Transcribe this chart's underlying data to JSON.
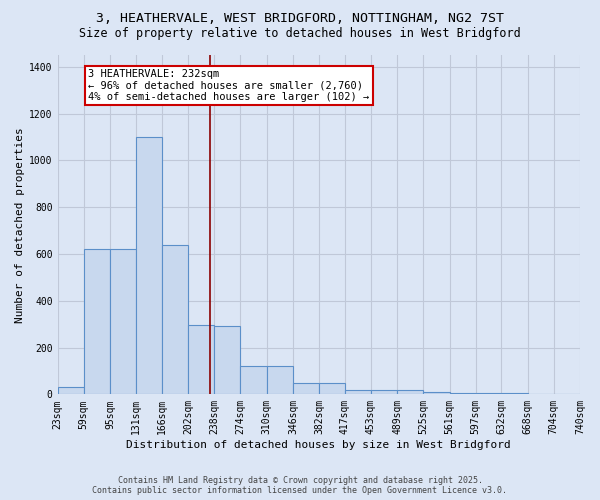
{
  "title1": "3, HEATHERVALE, WEST BRIDGFORD, NOTTINGHAM, NG2 7ST",
  "title2": "Size of property relative to detached houses in West Bridgford",
  "xlabel": "Distribution of detached houses by size in West Bridgford",
  "ylabel": "Number of detached properties",
  "footnote1": "Contains HM Land Registry data © Crown copyright and database right 2025.",
  "footnote2": "Contains public sector information licensed under the Open Government Licence v3.0.",
  "bin_edges": [
    23,
    59,
    95,
    131,
    166,
    202,
    238,
    274,
    310,
    346,
    382,
    417,
    453,
    489,
    525,
    561,
    597,
    632,
    668,
    704,
    740
  ],
  "bar_heights": [
    30,
    620,
    620,
    1100,
    640,
    295,
    290,
    120,
    120,
    50,
    50,
    20,
    20,
    20,
    10,
    5,
    5,
    5,
    3,
    2
  ],
  "bar_color": "#c8d8ee",
  "bar_edgecolor": "#5b8fc9",
  "property_size": 232,
  "vline_color": "#8b0000",
  "annotation_text": "3 HEATHERVALE: 232sqm\n← 96% of detached houses are smaller (2,760)\n4% of semi-detached houses are larger (102) →",
  "annotation_box_color": "#ffffff",
  "annotation_box_edgecolor": "#cc0000",
  "bg_color": "#dce6f5",
  "plot_bg_color": "#dce6f5",
  "grid_color": "#c0c8d8",
  "ylim": [
    0,
    1450
  ],
  "yticks": [
    0,
    200,
    400,
    600,
    800,
    1000,
    1200,
    1400
  ],
  "title_fontsize": 9.5,
  "subtitle_fontsize": 8.5,
  "ylabel_fontsize": 8,
  "xlabel_fontsize": 8,
  "tick_fontsize": 7,
  "annot_fontsize": 7.5,
  "footnote_fontsize": 6
}
